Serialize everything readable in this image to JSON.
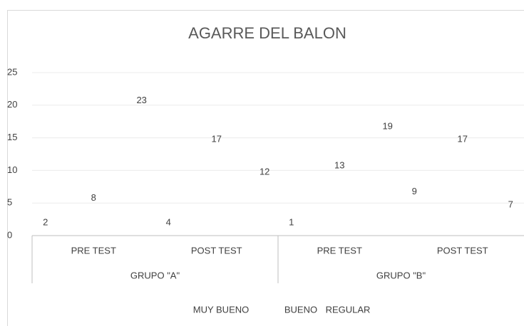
{
  "chart_data": {
    "type": "bar",
    "title": "AGARRE DEL BALON",
    "groups": [
      {
        "name": "GRUPO \"A\"",
        "categories": [
          "PRE TEST",
          "POST TEST"
        ]
      },
      {
        "name": "GRUPO \"B\"",
        "categories": [
          "PRE TEST",
          "POST TEST"
        ]
      }
    ],
    "series": [
      {
        "name": "MUY BUENO",
        "values": [
          2,
          4,
          1,
          9
        ]
      },
      {
        "name": "BUENO",
        "values": [
          8,
          17,
          13,
          17
        ]
      },
      {
        "name": "REGULAR",
        "values": [
          23,
          12,
          19,
          7
        ]
      }
    ],
    "ylim": [
      0,
      25
    ],
    "yticks": [
      0,
      5,
      10,
      15,
      20,
      25
    ],
    "grid": true,
    "legend": "bottom"
  }
}
